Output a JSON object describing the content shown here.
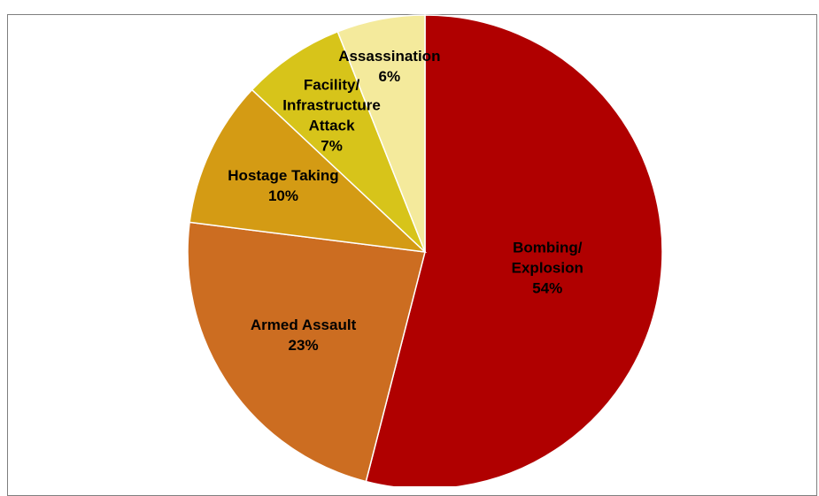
{
  "chart_data": {
    "type": "pie",
    "title": "",
    "start_angle_deg": 0,
    "direction": "clockwise",
    "slices": [
      {
        "label": [
          "Bombing/",
          "Explosion"
        ],
        "value": 54,
        "value_label": "54%",
        "color": "#b00000"
      },
      {
        "label": [
          "Armed Assault"
        ],
        "value": 23,
        "value_label": "23%",
        "color": "#cc6d21"
      },
      {
        "label": [
          "Hostage Taking"
        ],
        "value": 10,
        "value_label": "10%",
        "color": "#d49b14"
      },
      {
        "label": [
          "Facility/",
          "Infrastructure",
          "Attack"
        ],
        "value": 7,
        "value_label": "7%",
        "color": "#d7c41a"
      },
      {
        "label": [
          "Assassination"
        ],
        "value": 6,
        "value_label": "6%",
        "color": "#f4ea9c"
      }
    ]
  }
}
